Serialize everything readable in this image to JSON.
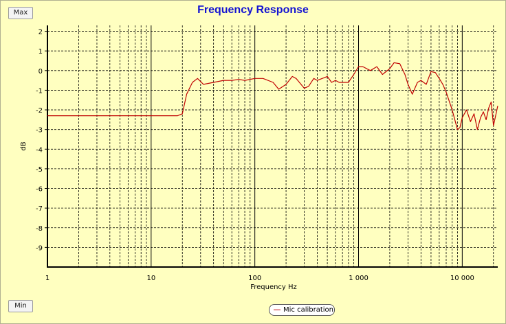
{
  "buttons": {
    "max_label": "Max",
    "min_label": "Min"
  },
  "colors": {
    "background": "#ffffc0",
    "title": "#1414d2",
    "series": "#c00000"
  },
  "chart_data": {
    "type": "line",
    "title": "Frequency Response",
    "xlabel": "Frequency Hz",
    "ylabel": "dB",
    "xscale": "log",
    "xlim": [
      1,
      22000
    ],
    "ylim": [
      -10,
      2.3
    ],
    "grid": true,
    "legend": "bottom-center",
    "x_ticks": [
      {
        "v": 1,
        "label": "1"
      },
      {
        "v": 10,
        "label": "10"
      },
      {
        "v": 100,
        "label": "100"
      },
      {
        "v": 1000,
        "label": "1 000"
      },
      {
        "v": 10000,
        "label": "10 000"
      }
    ],
    "y_ticks": [
      {
        "v": 2,
        "label": "2"
      },
      {
        "v": 1,
        "label": "1"
      },
      {
        "v": 0,
        "label": "0"
      },
      {
        "v": -1,
        "label": "-1"
      },
      {
        "v": -2,
        "label": "-2"
      },
      {
        "v": -3,
        "label": "-3"
      },
      {
        "v": -4,
        "label": "-4"
      },
      {
        "v": -5,
        "label": "-5"
      },
      {
        "v": -6,
        "label": "-6"
      },
      {
        "v": -7,
        "label": "-7"
      },
      {
        "v": -8,
        "label": "-8"
      },
      {
        "v": -9,
        "label": "-9"
      }
    ],
    "series": [
      {
        "name": "Mic calibration",
        "x": [
          1,
          18,
          20,
          22,
          25,
          28,
          32,
          40,
          50,
          60,
          70,
          80,
          100,
          120,
          150,
          170,
          200,
          230,
          250,
          300,
          330,
          370,
          400,
          500,
          550,
          600,
          650,
          700,
          800,
          900,
          1000,
          1100,
          1300,
          1500,
          1700,
          2000,
          2200,
          2500,
          2800,
          3000,
          3300,
          3700,
          4000,
          4500,
          5000,
          5500,
          6000,
          6500,
          7000,
          8000,
          9000,
          9500,
          10000,
          11000,
          12000,
          13000,
          14000,
          15000,
          16000,
          17000,
          18000,
          19000,
          20000,
          22000
        ],
        "y": [
          -2.3,
          -2.3,
          -2.2,
          -1.2,
          -0.6,
          -0.4,
          -0.7,
          -0.6,
          -0.5,
          -0.5,
          -0.45,
          -0.5,
          -0.4,
          -0.4,
          -0.6,
          -0.95,
          -0.7,
          -0.3,
          -0.4,
          -0.9,
          -0.8,
          -0.4,
          -0.5,
          -0.3,
          -0.6,
          -0.5,
          -0.6,
          -0.6,
          -0.6,
          -0.2,
          0.2,
          0.2,
          0.0,
          0.2,
          -0.2,
          0.1,
          0.4,
          0.35,
          -0.2,
          -0.7,
          -1.2,
          -0.6,
          -0.5,
          -0.7,
          -0.05,
          -0.1,
          -0.4,
          -0.7,
          -1.1,
          -2.0,
          -3.0,
          -2.9,
          -2.4,
          -2.0,
          -2.6,
          -2.2,
          -3.0,
          -2.4,
          -2.1,
          -2.5,
          -1.9,
          -1.6,
          -2.8,
          -1.8
        ]
      }
    ]
  }
}
